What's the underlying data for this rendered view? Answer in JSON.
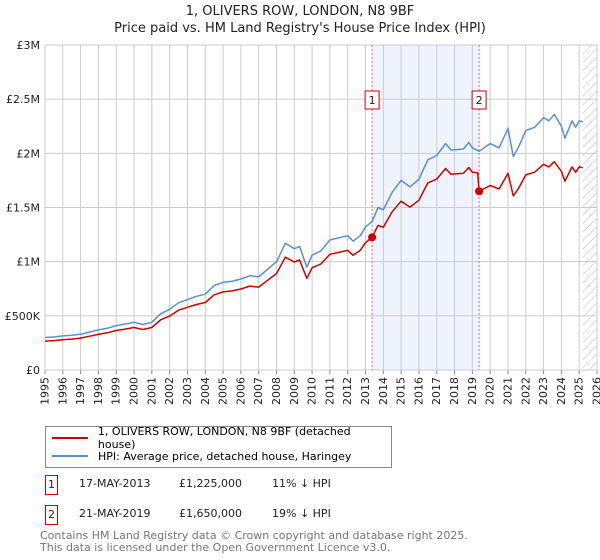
{
  "chart_data": {
    "type": "line",
    "title": "1, OLIVERS ROW, LONDON, N8 9BF",
    "subtitle": "Price paid vs. HM Land Registry's House Price Index (HPI)",
    "xlim": [
      1995,
      2026
    ],
    "ylim": [
      0,
      3000000
    ],
    "x_ticks": [
      "1995",
      "1996",
      "1997",
      "1998",
      "1999",
      "2000",
      "2001",
      "2002",
      "2003",
      "2004",
      "2005",
      "2006",
      "2007",
      "2008",
      "2009",
      "2010",
      "2011",
      "2012",
      "2013",
      "2014",
      "2015",
      "2016",
      "2017",
      "2018",
      "2019",
      "2020",
      "2021",
      "2022",
      "2023",
      "2024",
      "2025",
      "2026"
    ],
    "y_ticks": [
      {
        "v": 0,
        "label": "£0"
      },
      {
        "v": 500000,
        "label": "£500K"
      },
      {
        "v": 1000000,
        "label": "£1M"
      },
      {
        "v": 1500000,
        "label": "£1.5M"
      },
      {
        "v": 2000000,
        "label": "£2M"
      },
      {
        "v": 2500000,
        "label": "£2.5M"
      },
      {
        "v": 3000000,
        "label": "£3M"
      }
    ],
    "grid": true,
    "shaded_range": [
      2013.37,
      2019.38
    ],
    "forecast_hatch_from": 2025.2,
    "series": [
      {
        "name": "1, OLIVERS ROW, LONDON, N8 9BF (detached house)",
        "color": "#cc0000",
        "unit": "k",
        "points": [
          [
            1995,
            267
          ],
          [
            1995.5,
            271
          ],
          [
            1996,
            280
          ],
          [
            1996.5,
            285
          ],
          [
            1997,
            294
          ],
          [
            1997.5,
            312
          ],
          [
            1998,
            329
          ],
          [
            1998.5,
            343
          ],
          [
            1999,
            365
          ],
          [
            1999.5,
            378
          ],
          [
            2000,
            392
          ],
          [
            2000.5,
            374
          ],
          [
            2001,
            392
          ],
          [
            2001.5,
            463
          ],
          [
            2002,
            498
          ],
          [
            2002.5,
            552
          ],
          [
            2003,
            579
          ],
          [
            2003.5,
            605
          ],
          [
            2004,
            623
          ],
          [
            2004.5,
            694
          ],
          [
            2005,
            721
          ],
          [
            2005.5,
            730
          ],
          [
            2006,
            748
          ],
          [
            2006.5,
            774
          ],
          [
            2007,
            765
          ],
          [
            2007.5,
            828
          ],
          [
            2008,
            890
          ],
          [
            2008.5,
            1041
          ],
          [
            2009,
            997
          ],
          [
            2009.3,
            1015
          ],
          [
            2009.7,
            846
          ],
          [
            2010,
            943
          ],
          [
            2010.5,
            979
          ],
          [
            2011,
            1068
          ],
          [
            2011.5,
            1086
          ],
          [
            2012,
            1104
          ],
          [
            2012.3,
            1059
          ],
          [
            2012.7,
            1104
          ],
          [
            2013,
            1175
          ],
          [
            2013.37,
            1225
          ],
          [
            2013.7,
            1335
          ],
          [
            2014,
            1317
          ],
          [
            2014.5,
            1460
          ],
          [
            2015,
            1558
          ],
          [
            2015.5,
            1504
          ],
          [
            2016,
            1566
          ],
          [
            2016.5,
            1727
          ],
          [
            2017,
            1762
          ],
          [
            2017.5,
            1860
          ],
          [
            2017.8,
            1807
          ],
          [
            2018.5,
            1816
          ],
          [
            2018.8,
            1869
          ],
          [
            2019,
            1825
          ],
          [
            2019.3,
            1820
          ],
          [
            2019.38,
            1650
          ],
          [
            2020,
            1703
          ],
          [
            2020.5,
            1671
          ],
          [
            2021,
            1817
          ],
          [
            2021.3,
            1606
          ],
          [
            2021.6,
            1679
          ],
          [
            2022,
            1801
          ],
          [
            2022.5,
            1826
          ],
          [
            2023,
            1899
          ],
          [
            2023.3,
            1875
          ],
          [
            2023.6,
            1923
          ],
          [
            2024,
            1834
          ],
          [
            2024.2,
            1744
          ],
          [
            2024.6,
            1875
          ],
          [
            2024.8,
            1826
          ],
          [
            2025,
            1875
          ],
          [
            2025.2,
            1866
          ]
        ]
      },
      {
        "name": "HPI: Average price, detached house, Haringey",
        "color": "#5b8fd4",
        "unit": "k",
        "points": [
          [
            1995,
            300
          ],
          [
            1995.5,
            305
          ],
          [
            1996,
            315
          ],
          [
            1996.5,
            320
          ],
          [
            1997,
            330
          ],
          [
            1997.5,
            350
          ],
          [
            1998,
            370
          ],
          [
            1998.5,
            385
          ],
          [
            1999,
            410
          ],
          [
            1999.5,
            425
          ],
          [
            2000,
            440
          ],
          [
            2000.5,
            420
          ],
          [
            2001,
            440
          ],
          [
            2001.5,
            520
          ],
          [
            2002,
            560
          ],
          [
            2002.5,
            620
          ],
          [
            2003,
            650
          ],
          [
            2003.5,
            680
          ],
          [
            2004,
            700
          ],
          [
            2004.5,
            780
          ],
          [
            2005,
            810
          ],
          [
            2005.5,
            820
          ],
          [
            2006,
            840
          ],
          [
            2006.5,
            870
          ],
          [
            2007,
            860
          ],
          [
            2007.5,
            930
          ],
          [
            2008,
            1000
          ],
          [
            2008.5,
            1170
          ],
          [
            2009,
            1120
          ],
          [
            2009.3,
            1140
          ],
          [
            2009.7,
            950
          ],
          [
            2010,
            1060
          ],
          [
            2010.5,
            1100
          ],
          [
            2011,
            1200
          ],
          [
            2011.5,
            1220
          ],
          [
            2012,
            1240
          ],
          [
            2012.3,
            1190
          ],
          [
            2012.7,
            1240
          ],
          [
            2013,
            1320
          ],
          [
            2013.37,
            1370
          ],
          [
            2013.7,
            1500
          ],
          [
            2014,
            1480
          ],
          [
            2014.5,
            1640
          ],
          [
            2015,
            1750
          ],
          [
            2015.5,
            1690
          ],
          [
            2016,
            1760
          ],
          [
            2016.5,
            1940
          ],
          [
            2017,
            1980
          ],
          [
            2017.5,
            2090
          ],
          [
            2017.8,
            2030
          ],
          [
            2018.5,
            2040
          ],
          [
            2018.8,
            2100
          ],
          [
            2019,
            2050
          ],
          [
            2019.38,
            2020
          ],
          [
            2020,
            2090
          ],
          [
            2020.5,
            2050
          ],
          [
            2021,
            2230
          ],
          [
            2021.3,
            1970
          ],
          [
            2021.6,
            2060
          ],
          [
            2022,
            2210
          ],
          [
            2022.5,
            2240
          ],
          [
            2023,
            2330
          ],
          [
            2023.3,
            2300
          ],
          [
            2023.6,
            2360
          ],
          [
            2024,
            2250
          ],
          [
            2024.2,
            2140
          ],
          [
            2024.6,
            2300
          ],
          [
            2024.8,
            2240
          ],
          [
            2025,
            2300
          ],
          [
            2025.2,
            2290
          ]
        ]
      }
    ],
    "sales": [
      {
        "label": "1",
        "x": 2013.37,
        "value": 1225000,
        "date": "17-MAY-2013",
        "price": "£1,225,000",
        "hpi_diff": "11% ↓ HPI"
      },
      {
        "label": "2",
        "x": 2019.38,
        "value": 1650000,
        "date": "21-MAY-2019",
        "price": "£1,650,000",
        "hpi_diff": "19% ↓ HPI"
      }
    ]
  },
  "footer": {
    "line1": "Contains HM Land Registry data © Crown copyright and database right 2025.",
    "line2": "This data is licensed under the Open Government Licence v3.0."
  }
}
